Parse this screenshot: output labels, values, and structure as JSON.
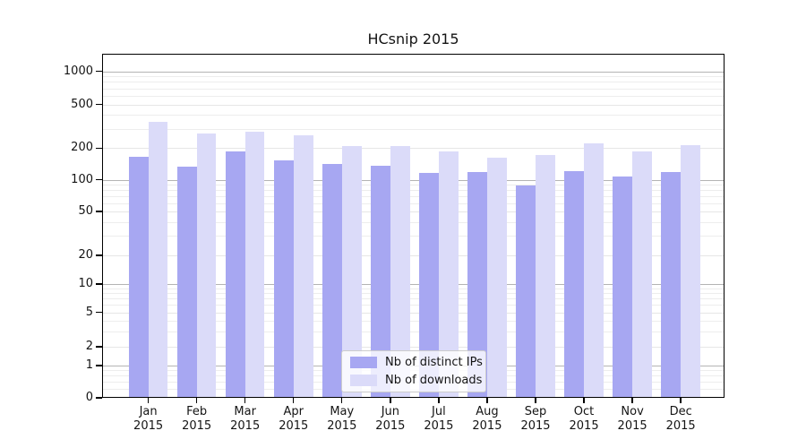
{
  "title": "HCsnip 2015",
  "chart_data": {
    "type": "bar",
    "title": "HCsnip 2015",
    "categories": [
      "Jan",
      "Feb",
      "Mar",
      "Apr",
      "May",
      "Jun",
      "Jul",
      "Aug",
      "Sep",
      "Oct",
      "Nov",
      "Dec"
    ],
    "year": "2015",
    "series": [
      {
        "name": "Nb of distinct IPs",
        "color": "#a7a7f2",
        "values": [
          166,
          133,
          186,
          152,
          142,
          136,
          116,
          118,
          89,
          122,
          108,
          118
        ]
      },
      {
        "name": "Nb of downloads",
        "color": "#dbdbf9",
        "values": [
          345,
          270,
          284,
          263,
          210,
          207,
          185,
          162,
          171,
          220,
          186,
          214
        ]
      }
    ],
    "y_axis": {
      "scale": "log-like",
      "tick_values": [
        0,
        1,
        2,
        5,
        10,
        20,
        50,
        100,
        200,
        500,
        1000
      ],
      "range_top": 1000
    },
    "grid": true,
    "legend_position": "lower center"
  },
  "colors": {
    "grid_major": "#b4b4b4",
    "grid_light": "#e6e6e6",
    "grid_minor": "#ededed",
    "axis": "#000000",
    "background": "#ffffff",
    "text": "#141414"
  }
}
